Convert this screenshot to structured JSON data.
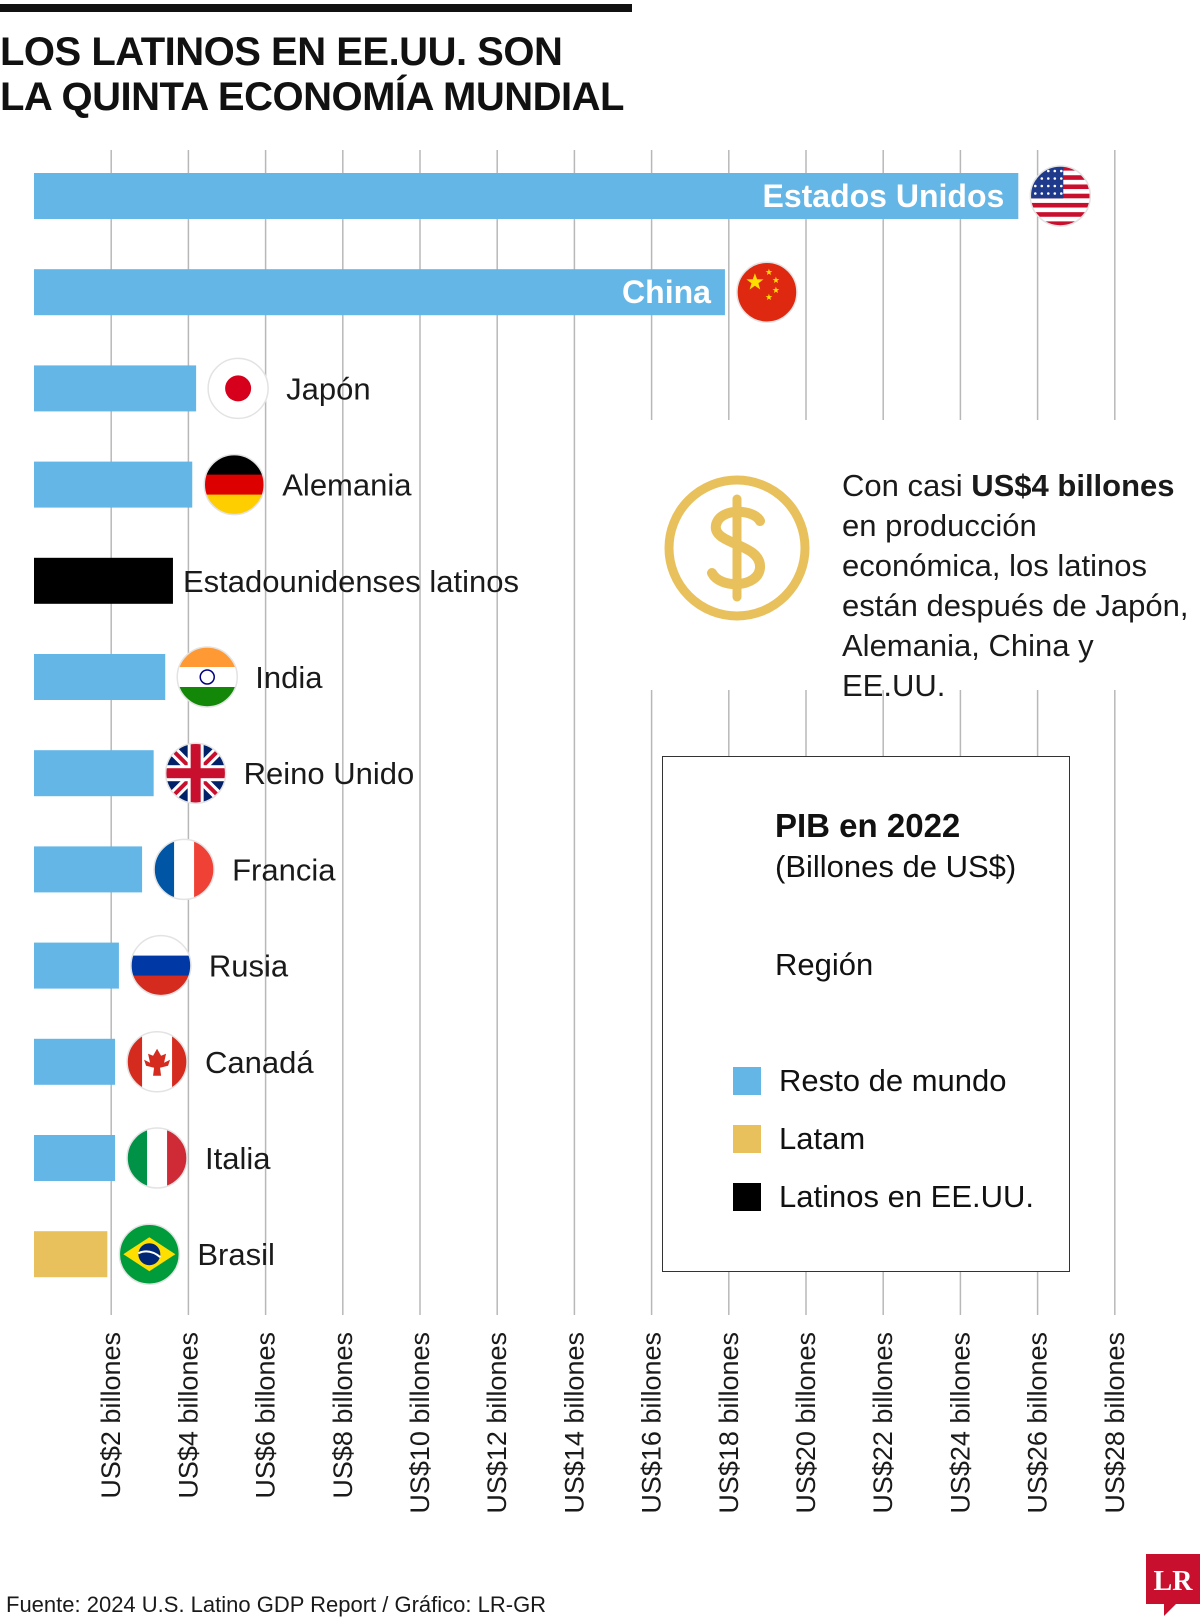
{
  "header": {
    "title_line1": "LOS LATINOS EN EE.UU. SON",
    "title_line2": "LA QUINTA ECONOMÍA MUNDIAL"
  },
  "annotation": {
    "pre": "Con casi ",
    "bold": "US$4 billones",
    "rest": " en producción económica, los latinos están después de Japón, Alemania, China y EE.UU."
  },
  "legend": {
    "title": "PIB en 2022",
    "subtitle": "(Billones de US$)",
    "region_label": "Región",
    "items": [
      {
        "label": "Resto de mundo",
        "color": "#63b6e6"
      },
      {
        "label": "Latam",
        "color": "#e8c15d"
      },
      {
        "label": "Latinos en EE.UU.",
        "color": "#000000"
      }
    ]
  },
  "source": "Fuente: 2024 U.S. Latino GDP Report / Gráfico: LR-GR",
  "logo_text": "LR",
  "chart_data": {
    "type": "bar",
    "orientation": "horizontal",
    "x_tick_values": [
      2,
      4,
      6,
      8,
      10,
      12,
      14,
      16,
      18,
      20,
      22,
      24,
      26,
      28
    ],
    "x_tick_labels": [
      "US$2 billones",
      "US$4 billones",
      "US$6 billones",
      "US$8 billones",
      "US$10 billones",
      "US$12 billones",
      "US$14 billones",
      "US$16 billones",
      "US$18 billones",
      "US$20 billones",
      "US$22 billones",
      "US$24 billones",
      "US$26 billones",
      "US$28 billones"
    ],
    "xlim": [
      0,
      28
    ],
    "grid": true,
    "bars": [
      {
        "label": "Estados Unidos",
        "value": 25.5,
        "group": "Resto de mundo",
        "flag": "usa-flag-icon",
        "label_inside": true
      },
      {
        "label": "China",
        "value": 17.9,
        "group": "Resto de mundo",
        "flag": "china-flag-icon",
        "label_inside": true
      },
      {
        "label": "Japón",
        "value": 4.2,
        "group": "Resto de mundo",
        "flag": "japan-flag-icon",
        "label_inside": false
      },
      {
        "label": "Alemania",
        "value": 4.1,
        "group": "Resto de mundo",
        "flag": "germany-flag-icon",
        "label_inside": false
      },
      {
        "label": "Estadounidenses latinos",
        "value": 3.6,
        "group": "Latinos en EE.UU.",
        "flag": "",
        "label_inside": false
      },
      {
        "label": "India",
        "value": 3.4,
        "group": "Resto de mundo",
        "flag": "india-flag-icon",
        "label_inside": false
      },
      {
        "label": "Reino Unido",
        "value": 3.1,
        "group": "Resto de mundo",
        "flag": "uk-flag-icon",
        "label_inside": false
      },
      {
        "label": "Francia",
        "value": 2.8,
        "group": "Resto de mundo",
        "flag": "france-flag-icon",
        "label_inside": false
      },
      {
        "label": "Rusia",
        "value": 2.2,
        "group": "Resto de mundo",
        "flag": "russia-flag-icon",
        "label_inside": false
      },
      {
        "label": "Canadá",
        "value": 2.1,
        "group": "Resto de mundo",
        "flag": "canada-flag-icon",
        "label_inside": false
      },
      {
        "label": "Italia",
        "value": 2.1,
        "group": "Resto de mundo",
        "flag": "italy-flag-icon",
        "label_inside": false
      },
      {
        "label": "Brasil",
        "value": 1.9,
        "group": "Latam",
        "flag": "brazil-flag-icon",
        "label_inside": false
      }
    ],
    "colors": {
      "Resto de mundo": "#63b6e6",
      "Latam": "#e8c15d",
      "Latinos en EE.UU.": "#000000"
    }
  }
}
